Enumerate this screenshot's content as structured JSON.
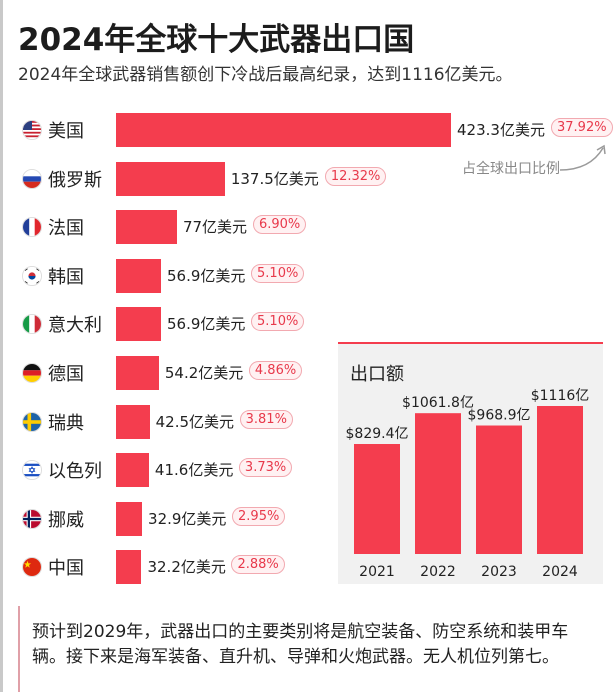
{
  "header": {
    "title": "2024年全球十大武器出口国",
    "subtitle": "2024年全球武器销售额创下冷战后最高纪录，达到1116亿美元。"
  },
  "annotation": "占全球出口比例",
  "colors": {
    "bar": "#f43d4e",
    "accent": "#e8394b",
    "panel": "#f1f1f1"
  },
  "chart_data": [
    {
      "type": "bar",
      "orientation": "horizontal",
      "unit": "亿美元",
      "categories": [
        "美国",
        "俄罗斯",
        "法国",
        "韩国",
        "意大利",
        "德国",
        "瑞典",
        "以色列",
        "挪威",
        "中国"
      ],
      "values": [
        423.3,
        137.5,
        77,
        56.9,
        56.9,
        54.2,
        42.5,
        41.6,
        32.9,
        32.2
      ],
      "value_labels": [
        "423.3亿美元",
        "137.5亿美元",
        "77亿美元",
        "56.9亿美元",
        "56.9亿美元",
        "54.2亿美元",
        "42.5亿美元",
        "41.6亿美元",
        "32.9亿美元",
        "32.2亿美元"
      ],
      "shares": [
        "37.92%",
        "12.32%",
        "6.90%",
        "5.10%",
        "5.10%",
        "4.86%",
        "3.81%",
        "3.73%",
        "2.95%",
        "2.88%"
      ],
      "flags": [
        "us-flag-icon",
        "russia-flag-icon",
        "france-flag-icon",
        "korea-flag-icon",
        "italy-flag-icon",
        "germany-flag-icon",
        "sweden-flag-icon",
        "israel-flag-icon",
        "norway-flag-icon",
        "china-flag-icon"
      ]
    },
    {
      "type": "bar",
      "title": "出口额",
      "categories": [
        "2021",
        "2022",
        "2023",
        "2024"
      ],
      "values": [
        829.4,
        1061.8,
        968.9,
        1116
      ],
      "value_labels": [
        "$829.4亿",
        "$1061.8亿",
        "$968.9亿",
        "$1116亿"
      ]
    }
  ],
  "footer": {
    "note": "预计到2029年，武器出口的主要类别将是航空装备、防空系统和装甲车辆。接下来是海军装备、直升机、导弹和火炮武器。无人机位列第七。"
  }
}
